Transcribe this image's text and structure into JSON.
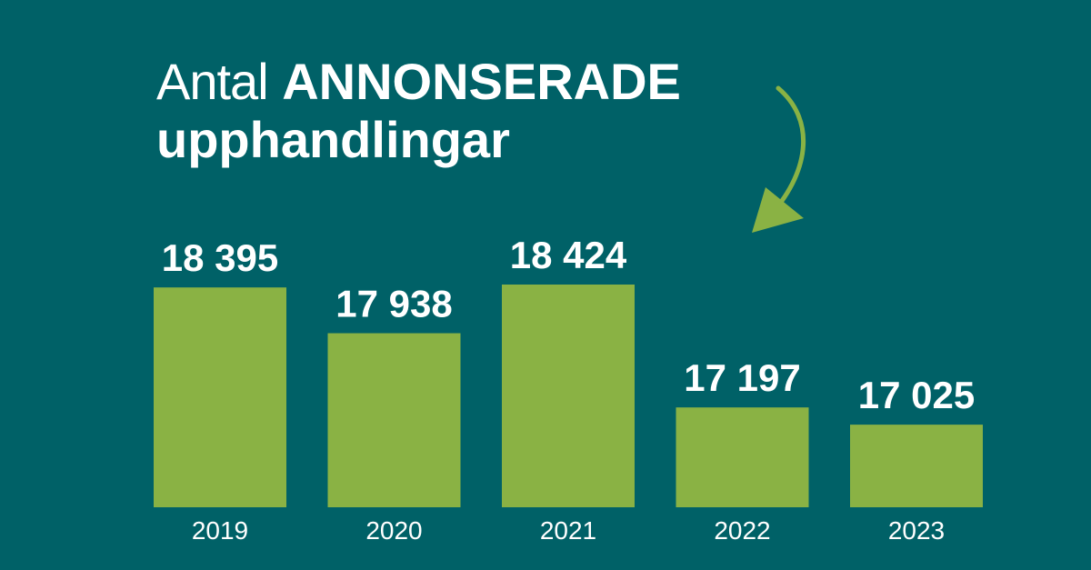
{
  "title": {
    "prefix": "Antal",
    "emphasis": "ANNONSERADE",
    "line2": "upphandlingar"
  },
  "colors": {
    "background": "#006167",
    "bar": "#8ab244",
    "arrow": "#8ab244",
    "text": "#ffffff"
  },
  "icons": {
    "arrow": "curved-arrow-down-icon"
  },
  "chart_data": {
    "type": "bar",
    "title": "Antal ANNONSERADE upphandlingar",
    "categories": [
      "2019",
      "2020",
      "2021",
      "2022",
      "2023"
    ],
    "values": [
      18395,
      17938,
      18424,
      17197,
      17025
    ],
    "value_labels": [
      "18 395",
      "17 938",
      "18 424",
      "17 197",
      "17 025"
    ],
    "xlabel": "",
    "ylabel": "",
    "ylim": [
      16200,
      18500
    ],
    "grid": false,
    "legend": "none"
  }
}
